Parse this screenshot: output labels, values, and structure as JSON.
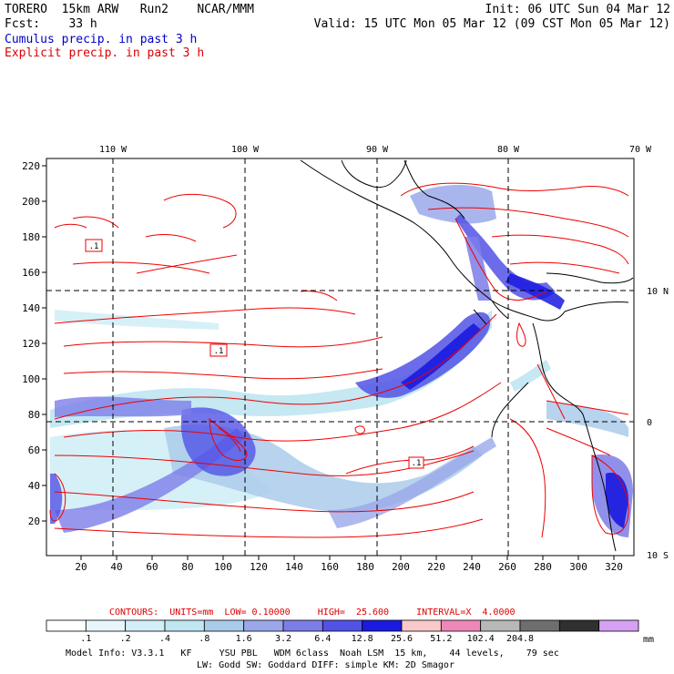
{
  "header": {
    "line1_left": "TORERO  15km ARW   Run2    NCAR/MMM",
    "line1_right": "Init: 06 UTC Sun 04 Mar 12",
    "line2_left": "Fcst:    33 h",
    "line2_right": "Valid: 15 UTC Mon 05 Mar 12 (09 CST Mon 05 Mar 12)",
    "line3": "Cumulus precip. in past 3 h",
    "line4": "Explicit precip. in past 3 h"
  },
  "colors": {
    "cumulus_title": "#0000cc",
    "explicit_title": "#dd0000",
    "contour": "#ee0000"
  },
  "map": {
    "lon_labels": [
      "110 W",
      "100 W",
      "90 W",
      "80 W",
      "70 W"
    ],
    "lat_labels": [
      "10 N",
      "0",
      "10 S"
    ],
    "y_ticks": [
      "220",
      "200",
      "180",
      "160",
      "140",
      "120",
      "100",
      "80",
      "60",
      "40",
      "20"
    ],
    "x_ticks": [
      "20",
      "40",
      "60",
      "80",
      "100",
      "120",
      "140",
      "160",
      "180",
      "200",
      "220",
      "240",
      "260",
      "280",
      "300",
      "320"
    ],
    "contour_labels": [
      ".1",
      ".1",
      ".1"
    ]
  },
  "footer": {
    "contours_line": "CONTOURS:  UNITS=mm  LOW= 0.10000     HIGH=  25.600     INTERVAL=X  4.0000",
    "model_info_1": "Model Info: V3.3.1   KF     YSU PBL   WDM 6class  Noah LSM  15 km,    44 levels,    79 sec",
    "model_info_2": "LW: Godd SW: Goddard DIFF: simple KM: 2D Smagor"
  },
  "colorbar": {
    "colors": [
      "#ffffff",
      "#e8f6fb",
      "#d2eef7",
      "#bfe6f1",
      "#aacbea",
      "#9aa8ea",
      "#7d7de8",
      "#5252e6",
      "#1a1ae0",
      "#f9c9c9",
      "#ee88b8",
      "#b8b8b8",
      "#6e6e6e",
      "#303030",
      "#d6a0f4"
    ],
    "labels": [
      ".1",
      ".2",
      ".4",
      ".8",
      "1.6",
      "3.2",
      "6.4",
      "12.8",
      "25.6",
      "51.2",
      "102.4",
      "204.8"
    ],
    "unit": "mm"
  }
}
